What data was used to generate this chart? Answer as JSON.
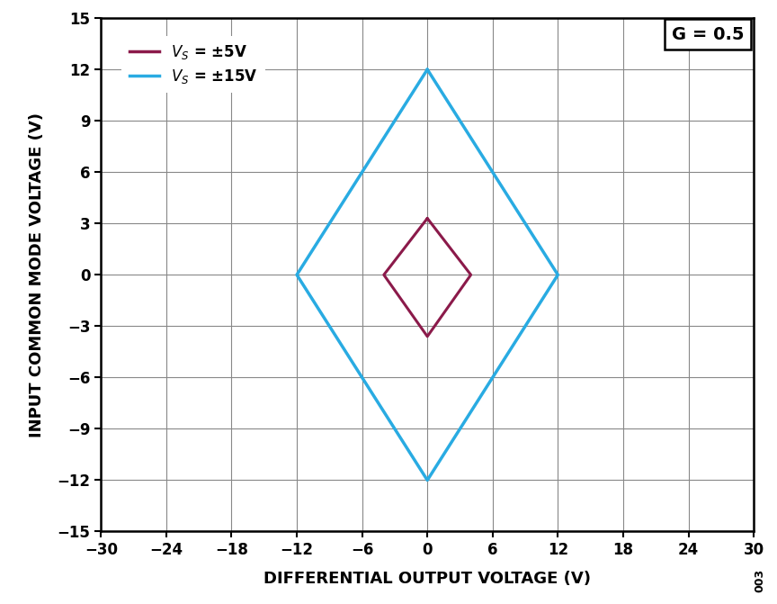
{
  "xlabel": "DIFFERENTIAL OUTPUT VOLTAGE (V)",
  "ylabel": "INPUT COMMON MODE VOLTAGE (V)",
  "xlim": [
    -30,
    30
  ],
  "ylim": [
    -15,
    15
  ],
  "xticks": [
    -30,
    -24,
    -18,
    -12,
    -6,
    0,
    6,
    12,
    18,
    24,
    30
  ],
  "yticks": [
    -15,
    -12,
    -9,
    -6,
    -3,
    0,
    3,
    6,
    9,
    12,
    15
  ],
  "annotation_G": "G = 0.5",
  "annotation_003": "003",
  "series": [
    {
      "label": "$V_S$ = ±5V",
      "color": "#8B1A4A",
      "linewidth": 2.2,
      "x": [
        0,
        -4,
        0,
        4,
        0
      ],
      "y": [
        3.3,
        0,
        -3.6,
        0,
        3.3
      ]
    },
    {
      "label": "$V_S$ = ±15V",
      "color": "#29ABE2",
      "linewidth": 2.5,
      "x": [
        0,
        -12,
        0,
        12,
        0
      ],
      "y": [
        12,
        0,
        -12,
        0,
        12
      ]
    }
  ],
  "fig_width": 8.64,
  "fig_height": 6.71,
  "dpi": 100,
  "grid_color": "#888888",
  "grid_linewidth": 0.8,
  "tick_labelsize": 12,
  "axis_labelsize": 13,
  "legend_fontsize": 12,
  "G_fontsize": 14
}
